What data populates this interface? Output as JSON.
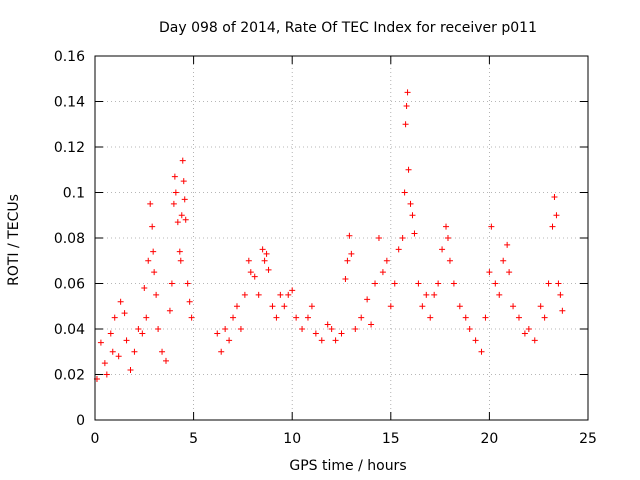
{
  "chart_data": {
    "type": "scatter",
    "title": "Day 098 of 2014, Rate Of TEC Index for receiver p011",
    "xlabel": "GPS time / hours",
    "ylabel": "ROTI / TECUs",
    "xlim": [
      0,
      25
    ],
    "ylim": [
      0,
      0.16
    ],
    "xticks": [
      0,
      5,
      10,
      15,
      20,
      25
    ],
    "xtick_labels": [
      "0",
      "5",
      "10",
      "15",
      "20",
      "25"
    ],
    "yticks": [
      0,
      0.02,
      0.04,
      0.06,
      0.08,
      0.1,
      0.12,
      0.14,
      0.16
    ],
    "ytick_labels": [
      "0",
      "0.02",
      "0.04",
      "0.06",
      "0.08",
      "0.1",
      "0.12",
      "0.14",
      "0.16"
    ],
    "grid": true,
    "marker": "+",
    "color": "#ff0000",
    "series": [
      {
        "name": "ROTI",
        "points": [
          [
            0.1,
            0.018
          ],
          [
            0.3,
            0.034
          ],
          [
            0.5,
            0.025
          ],
          [
            0.6,
            0.02
          ],
          [
            0.8,
            0.038
          ],
          [
            0.9,
            0.03
          ],
          [
            1.0,
            0.045
          ],
          [
            1.2,
            0.028
          ],
          [
            1.3,
            0.052
          ],
          [
            1.5,
            0.047
          ],
          [
            1.6,
            0.035
          ],
          [
            1.8,
            0.022
          ],
          [
            2.0,
            0.03
          ],
          [
            2.2,
            0.04
          ],
          [
            2.4,
            0.038
          ],
          [
            2.5,
            0.058
          ],
          [
            2.6,
            0.045
          ],
          [
            2.7,
            0.07
          ],
          [
            2.8,
            0.095
          ],
          [
            2.9,
            0.085
          ],
          [
            2.95,
            0.074
          ],
          [
            3.0,
            0.065
          ],
          [
            3.1,
            0.055
          ],
          [
            3.2,
            0.04
          ],
          [
            3.4,
            0.03
          ],
          [
            3.6,
            0.026
          ],
          [
            3.8,
            0.048
          ],
          [
            3.9,
            0.06
          ],
          [
            4.0,
            0.095
          ],
          [
            4.05,
            0.107
          ],
          [
            4.1,
            0.1
          ],
          [
            4.2,
            0.087
          ],
          [
            4.3,
            0.074
          ],
          [
            4.35,
            0.07
          ],
          [
            4.4,
            0.09
          ],
          [
            4.45,
            0.114
          ],
          [
            4.5,
            0.105
          ],
          [
            4.55,
            0.097
          ],
          [
            4.6,
            0.088
          ],
          [
            4.7,
            0.06
          ],
          [
            4.8,
            0.052
          ],
          [
            4.9,
            0.045
          ],
          [
            6.2,
            0.038
          ],
          [
            6.4,
            0.03
          ],
          [
            6.6,
            0.04
          ],
          [
            6.8,
            0.035
          ],
          [
            7.0,
            0.045
          ],
          [
            7.2,
            0.05
          ],
          [
            7.4,
            0.04
          ],
          [
            7.6,
            0.055
          ],
          [
            7.8,
            0.07
          ],
          [
            7.9,
            0.065
          ],
          [
            8.1,
            0.063
          ],
          [
            8.3,
            0.055
          ],
          [
            8.5,
            0.075
          ],
          [
            8.6,
            0.07
          ],
          [
            8.7,
            0.073
          ],
          [
            8.8,
            0.066
          ],
          [
            9.0,
            0.05
          ],
          [
            9.2,
            0.045
          ],
          [
            9.4,
            0.055
          ],
          [
            9.6,
            0.05
          ],
          [
            9.8,
            0.055
          ],
          [
            10.0,
            0.057
          ],
          [
            10.2,
            0.045
          ],
          [
            10.5,
            0.04
          ],
          [
            10.8,
            0.045
          ],
          [
            11.0,
            0.05
          ],
          [
            11.2,
            0.038
          ],
          [
            11.5,
            0.035
          ],
          [
            11.8,
            0.042
          ],
          [
            12.0,
            0.04
          ],
          [
            12.2,
            0.035
          ],
          [
            12.5,
            0.038
          ],
          [
            12.7,
            0.062
          ],
          [
            12.8,
            0.07
          ],
          [
            12.9,
            0.081
          ],
          [
            13.0,
            0.073
          ],
          [
            13.2,
            0.04
          ],
          [
            13.5,
            0.045
          ],
          [
            13.8,
            0.053
          ],
          [
            14.0,
            0.042
          ],
          [
            14.2,
            0.06
          ],
          [
            14.4,
            0.08
          ],
          [
            14.6,
            0.065
          ],
          [
            14.8,
            0.07
          ],
          [
            15.0,
            0.05
          ],
          [
            15.2,
            0.06
          ],
          [
            15.4,
            0.075
          ],
          [
            15.6,
            0.08
          ],
          [
            15.7,
            0.1
          ],
          [
            15.75,
            0.13
          ],
          [
            15.8,
            0.138
          ],
          [
            15.85,
            0.144
          ],
          [
            15.9,
            0.11
          ],
          [
            16.0,
            0.095
          ],
          [
            16.1,
            0.09
          ],
          [
            16.2,
            0.082
          ],
          [
            16.4,
            0.06
          ],
          [
            16.6,
            0.05
          ],
          [
            16.8,
            0.055
          ],
          [
            17.0,
            0.045
          ],
          [
            17.2,
            0.055
          ],
          [
            17.4,
            0.06
          ],
          [
            17.6,
            0.075
          ],
          [
            17.8,
            0.085
          ],
          [
            17.9,
            0.08
          ],
          [
            18.0,
            0.07
          ],
          [
            18.2,
            0.06
          ],
          [
            18.5,
            0.05
          ],
          [
            18.8,
            0.045
          ],
          [
            19.0,
            0.04
          ],
          [
            19.3,
            0.035
          ],
          [
            19.6,
            0.03
          ],
          [
            19.8,
            0.045
          ],
          [
            20.0,
            0.065
          ],
          [
            20.1,
            0.085
          ],
          [
            20.3,
            0.06
          ],
          [
            20.5,
            0.055
          ],
          [
            20.7,
            0.07
          ],
          [
            20.9,
            0.077
          ],
          [
            21.0,
            0.065
          ],
          [
            21.2,
            0.05
          ],
          [
            21.5,
            0.045
          ],
          [
            21.8,
            0.038
          ],
          [
            22.0,
            0.04
          ],
          [
            22.3,
            0.035
          ],
          [
            22.6,
            0.05
          ],
          [
            22.8,
            0.045
          ],
          [
            23.0,
            0.06
          ],
          [
            23.2,
            0.085
          ],
          [
            23.3,
            0.098
          ],
          [
            23.4,
            0.09
          ],
          [
            23.5,
            0.06
          ],
          [
            23.6,
            0.055
          ],
          [
            23.7,
            0.048
          ]
        ]
      }
    ]
  }
}
